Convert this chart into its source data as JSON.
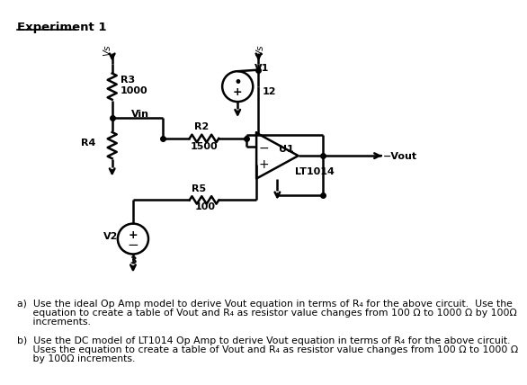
{
  "bg_color": "#ffffff",
  "fig_width": 6.35,
  "fig_height": 5.31,
  "title": "Experiment 1",
  "text_a_line1": "a)  Use the ideal Op Amp model to derive Vout equation in terms of R₄ for the above circuit.  Use the",
  "text_a_line2": "     equation to create a table of Vout and R₄ as resistor value changes from 100 Ω to 1000 Ω by 100Ω",
  "text_a_line3": "     increments.",
  "text_b_line1": "b)  Use the DC model of LT1014 Op Amp to derive Vout equation in terms of R₄ for the above circuit.",
  "text_b_line2": "     Uses the equation to create a table of Vout and R₄ as resistor value changes from 100 Ω to 1000 Ω",
  "text_b_line3": "     by 100Ω increments."
}
